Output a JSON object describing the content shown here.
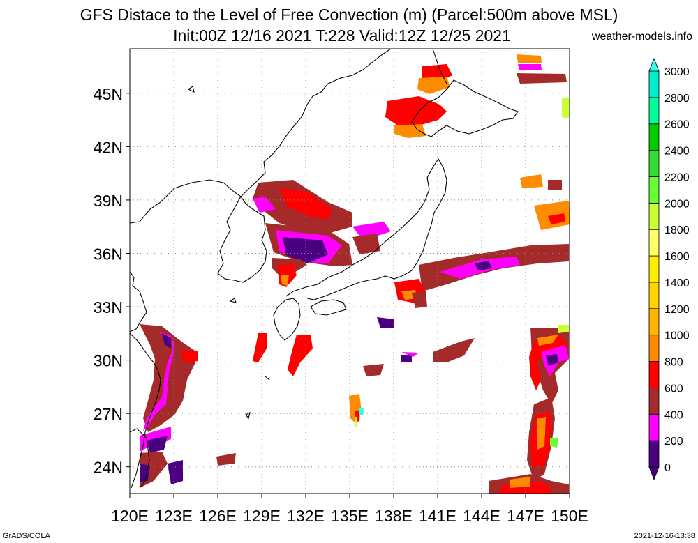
{
  "header": {
    "title_line1": "GFS Distace to the Level of Free Convection (m) (Parcel:500m above MSL)",
    "title_line2": "Init:00Z 12/16 2021 T:228 Valid:12Z 12/25 2021",
    "website": "weather-models.info"
  },
  "map": {
    "lon_labels": [
      "120E",
      "123E",
      "126E",
      "129E",
      "132E",
      "135E",
      "138E",
      "141E",
      "144E",
      "147E",
      "150E"
    ],
    "lat_labels": [
      "45N",
      "42N",
      "39N",
      "36N",
      "33N",
      "30N",
      "27N",
      "24N"
    ],
    "lat_values": [
      45,
      42,
      39,
      36,
      33,
      30,
      27,
      24
    ],
    "lon_range": [
      120,
      150
    ],
    "lat_range": [
      22.5,
      47.5
    ]
  },
  "legend": {
    "levels": [
      "0",
      "200",
      "400",
      "600",
      "800",
      "1000",
      "1200",
      "1400",
      "1600",
      "1800",
      "2000",
      "2200",
      "2400",
      "2600",
      "2800",
      "3000"
    ],
    "colors": [
      "#4b0082",
      "#ff00ff",
      "#a52a2a",
      "#ff0000",
      "#ff8c00",
      "#ffb400",
      "#ffd200",
      "#ffee00",
      "#ffff66",
      "#ccff33",
      "#66ff33",
      "#33dd33",
      "#00cc00",
      "#00ff99",
      "#00eecc",
      "#33ffee"
    ]
  },
  "footer": {
    "left": "GrADS/COLA",
    "right": "2021-12-16-13:38"
  }
}
